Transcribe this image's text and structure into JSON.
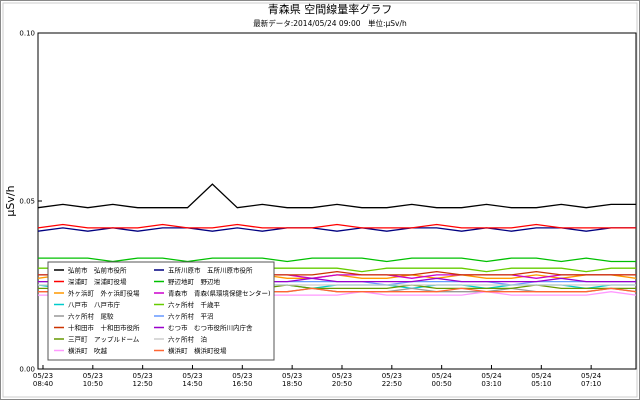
{
  "chart_data": {
    "type": "line",
    "title": "青森県 空間線量率グラフ",
    "subtitle": "最新データ:2014/05/24 09:00　単位:μSv/h",
    "y_label": "μSv/h",
    "x": [
      0,
      1,
      2,
      3,
      4,
      5,
      6,
      7,
      8,
      9,
      10,
      11,
      12,
      13,
      14,
      15,
      16,
      17,
      18,
      19,
      20,
      21,
      22,
      23,
      24
    ],
    "xlim": [
      0,
      24
    ],
    "xticks": [
      {
        "value": 0.2,
        "label": [
          "05/23",
          "08:40"
        ]
      },
      {
        "value": 2.2,
        "label": [
          "05/23",
          "10:50"
        ]
      },
      {
        "value": 4.2,
        "label": [
          "05/23",
          "12:50"
        ]
      },
      {
        "value": 6.2,
        "label": [
          "05/23",
          "14:50"
        ]
      },
      {
        "value": 8.2,
        "label": [
          "05/23",
          "16:50"
        ]
      },
      {
        "value": 10.2,
        "label": [
          "05/23",
          "18:50"
        ]
      },
      {
        "value": 12.2,
        "label": [
          "05/23",
          "20:50"
        ]
      },
      {
        "value": 14.2,
        "label": [
          "05/23",
          "22:50"
        ]
      },
      {
        "value": 16.2,
        "label": [
          "05/24",
          "00:50"
        ]
      },
      {
        "value": 18.2,
        "label": [
          "05/24",
          "03:10"
        ]
      },
      {
        "value": 20.2,
        "label": [
          "05/24",
          "05:10"
        ]
      },
      {
        "value": 22.2,
        "label": [
          "05/24",
          "07:10"
        ]
      }
    ],
    "ylim": [
      0,
      0.1
    ],
    "yticks": [
      {
        "value": 0,
        "label": "0.00"
      },
      {
        "value": 0.05,
        "label": "0.05"
      },
      {
        "value": 0.1,
        "label": "0.10"
      }
    ],
    "series": [
      {
        "name": "弘前市　弘前市役所",
        "color": "#000000",
        "values": [
          0.048,
          0.049,
          0.048,
          0.049,
          0.048,
          0.048,
          0.048,
          0.055,
          0.048,
          0.049,
          0.048,
          0.048,
          0.049,
          0.048,
          0.048,
          0.049,
          0.048,
          0.048,
          0.049,
          0.048,
          0.048,
          0.049,
          0.048,
          0.049,
          0.049
        ]
      },
      {
        "name": "五所川原市　五所川原市役所",
        "color": "#000080",
        "values": [
          0.041,
          0.042,
          0.041,
          0.042,
          0.041,
          0.042,
          0.042,
          0.041,
          0.042,
          0.041,
          0.042,
          0.042,
          0.041,
          0.042,
          0.041,
          0.042,
          0.042,
          0.041,
          0.042,
          0.041,
          0.042,
          0.042,
          0.041,
          0.042,
          0.042
        ]
      },
      {
        "name": "深浦町　深浦町役場",
        "color": "#ff0000",
        "values": [
          0.042,
          0.043,
          0.042,
          0.042,
          0.042,
          0.043,
          0.042,
          0.042,
          0.043,
          0.042,
          0.042,
          0.042,
          0.043,
          0.042,
          0.042,
          0.042,
          0.043,
          0.042,
          0.042,
          0.042,
          0.043,
          0.042,
          0.042,
          0.042,
          0.042
        ]
      },
      {
        "name": "野辺地町　野辺地",
        "color": "#00c000",
        "values": [
          0.033,
          0.033,
          0.033,
          0.032,
          0.033,
          0.033,
          0.032,
          0.033,
          0.033,
          0.033,
          0.032,
          0.033,
          0.033,
          0.033,
          0.032,
          0.033,
          0.033,
          0.033,
          0.032,
          0.033,
          0.033,
          0.032,
          0.033,
          0.032,
          0.032
        ]
      },
      {
        "name": "外ヶ浜町　外ヶ浜町役場",
        "color": "#ff9900",
        "values": [
          0.027,
          0.028,
          0.027,
          0.027,
          0.028,
          0.027,
          0.027,
          0.028,
          0.027,
          0.028,
          0.027,
          0.027,
          0.028,
          0.027,
          0.027,
          0.028,
          0.027,
          0.028,
          0.027,
          0.027,
          0.028,
          0.027,
          0.028,
          0.028,
          0.027
        ]
      },
      {
        "name": "青森市　青森(県環境保健センター)",
        "color": "#cc00cc",
        "values": [
          0.028,
          0.028,
          0.027,
          0.028,
          0.028,
          0.028,
          0.027,
          0.028,
          0.028,
          0.028,
          0.028,
          0.027,
          0.028,
          0.028,
          0.028,
          0.027,
          0.028,
          0.028,
          0.028,
          0.028,
          0.027,
          0.028,
          0.028,
          0.028,
          0.028
        ]
      },
      {
        "name": "八戸市　八戸市庁",
        "color": "#00cccc",
        "values": [
          0.025,
          0.024,
          0.025,
          0.025,
          0.024,
          0.025,
          0.025,
          0.025,
          0.024,
          0.025,
          0.025,
          0.024,
          0.025,
          0.025,
          0.025,
          0.024,
          0.025,
          0.025,
          0.024,
          0.025,
          0.025,
          0.025,
          0.024,
          0.025,
          0.025
        ]
      },
      {
        "name": "六ヶ所村　千歳平",
        "color": "#66cc00",
        "values": [
          0.03,
          0.03,
          0.03,
          0.029,
          0.03,
          0.03,
          0.03,
          0.03,
          0.029,
          0.03,
          0.03,
          0.03,
          0.03,
          0.029,
          0.03,
          0.03,
          0.03,
          0.03,
          0.029,
          0.03,
          0.03,
          0.03,
          0.029,
          0.03,
          0.03
        ]
      },
      {
        "name": "六ヶ所村　尾駮",
        "color": "#999999",
        "values": [
          0.023,
          0.023,
          0.024,
          0.023,
          0.023,
          0.023,
          0.024,
          0.023,
          0.023,
          0.023,
          0.023,
          0.024,
          0.023,
          0.023,
          0.023,
          0.024,
          0.023,
          0.023,
          0.023,
          0.024,
          0.023,
          0.023,
          0.023,
          0.024,
          0.023
        ]
      },
      {
        "name": "六ヶ所村　平沼",
        "color": "#6699ff",
        "values": [
          0.026,
          0.026,
          0.026,
          0.025,
          0.026,
          0.026,
          0.026,
          0.026,
          0.025,
          0.026,
          0.026,
          0.026,
          0.026,
          0.026,
          0.025,
          0.026,
          0.026,
          0.026,
          0.026,
          0.025,
          0.026,
          0.026,
          0.026,
          0.026,
          0.026
        ]
      },
      {
        "name": "十和田市　十和田市役所",
        "color": "#cc3300",
        "values": [
          0.028,
          0.028,
          0.029,
          0.028,
          0.028,
          0.028,
          0.028,
          0.029,
          0.028,
          0.028,
          0.028,
          0.028,
          0.029,
          0.028,
          0.028,
          0.028,
          0.029,
          0.028,
          0.028,
          0.028,
          0.029,
          0.028,
          0.028,
          0.028,
          0.028
        ]
      },
      {
        "name": "むつ市　むつ市役所川内庁舎",
        "color": "#9900cc",
        "values": [
          0.026,
          0.026,
          0.026,
          0.026,
          0.026,
          0.027,
          0.026,
          0.026,
          0.026,
          0.026,
          0.026,
          0.027,
          0.026,
          0.026,
          0.026,
          0.026,
          0.027,
          0.026,
          0.026,
          0.026,
          0.026,
          0.027,
          0.026,
          0.026,
          0.026
        ]
      },
      {
        "name": "三戸町　アップルドーム",
        "color": "#669900",
        "values": [
          0.024,
          0.024,
          0.024,
          0.024,
          0.025,
          0.024,
          0.024,
          0.024,
          0.024,
          0.024,
          0.025,
          0.024,
          0.024,
          0.024,
          0.024,
          0.025,
          0.024,
          0.024,
          0.024,
          0.024,
          0.025,
          0.024,
          0.024,
          0.024,
          0.024
        ]
      },
      {
        "name": "六ヶ所村　泊",
        "color": "#cccccc",
        "values": [
          0.025,
          0.025,
          0.025,
          0.025,
          0.025,
          0.025,
          0.025,
          0.025,
          0.025,
          0.025,
          0.025,
          0.025,
          0.025,
          0.025,
          0.025,
          0.025,
          0.025,
          0.025,
          0.025,
          0.025,
          0.025,
          0.025,
          0.025,
          0.025,
          0.025
        ]
      },
      {
        "name": "横浜町　吹越",
        "color": "#ff99ff",
        "values": [
          0.022,
          0.022,
          0.022,
          0.023,
          0.022,
          0.022,
          0.022,
          0.022,
          0.023,
          0.022,
          0.022,
          0.022,
          0.022,
          0.023,
          0.022,
          0.022,
          0.022,
          0.022,
          0.023,
          0.022,
          0.022,
          0.022,
          0.022,
          0.023,
          0.022
        ]
      },
      {
        "name": "横浜町　横浜町役場",
        "color": "#ff6633",
        "values": [
          0.023,
          0.023,
          0.023,
          0.023,
          0.023,
          0.024,
          0.023,
          0.023,
          0.023,
          0.023,
          0.023,
          0.024,
          0.023,
          0.023,
          0.023,
          0.023,
          0.023,
          0.024,
          0.023,
          0.023,
          0.023,
          0.023,
          0.023,
          0.024,
          0.023
        ]
      }
    ]
  }
}
